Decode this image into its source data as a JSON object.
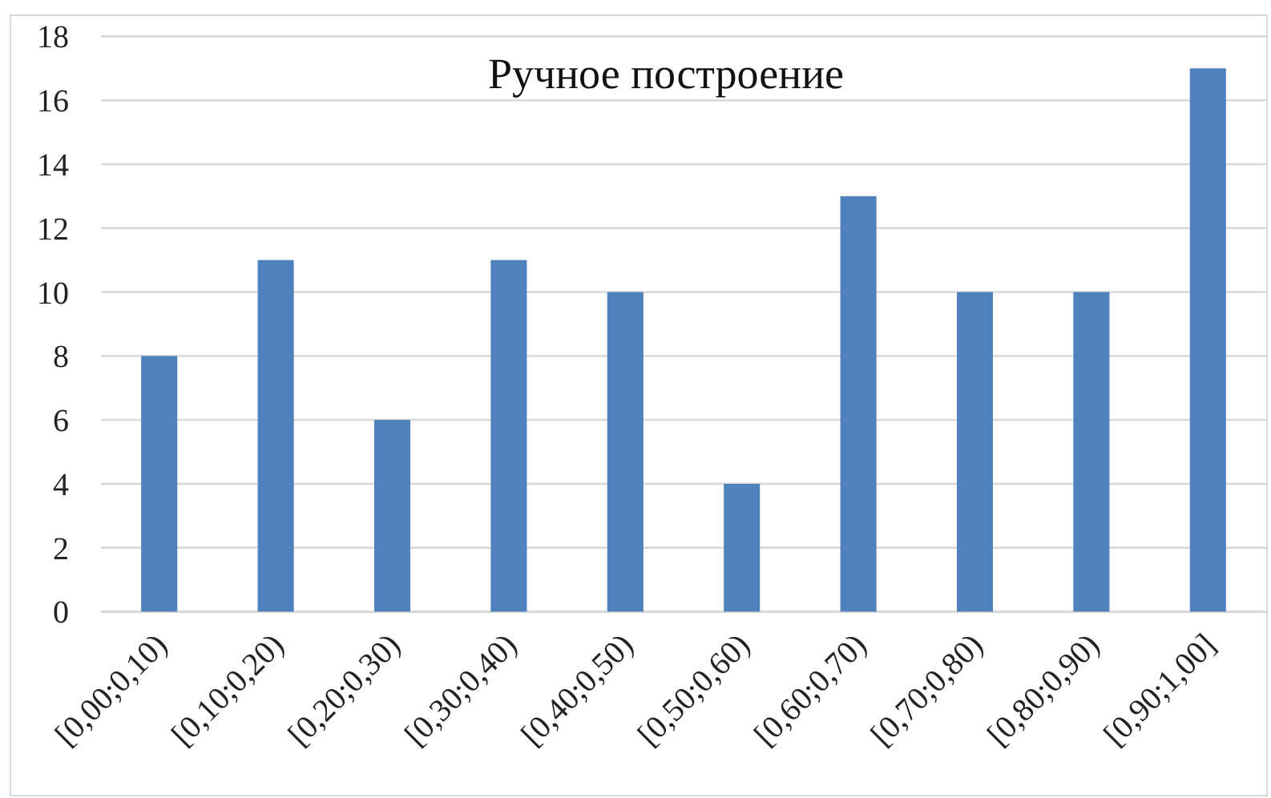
{
  "chart_data": {
    "type": "bar",
    "title": "Ручное построение",
    "categories": [
      "[0,00;0,10)",
      "[0,10;0,20)",
      "[0,20;0,30)",
      "[0,30;0,40)",
      "[0,40;0,50)",
      "[0,50;0,60)",
      "[0,60;0,70)",
      "[0,70;0,80)",
      "[0,80;0,90)",
      "[0,90;1,00]"
    ],
    "values": [
      8,
      11,
      6,
      11,
      10,
      4,
      13,
      10,
      10,
      17
    ],
    "color": "#4f81bd",
    "ylim": [
      0,
      18
    ],
    "yticks": [
      0,
      2,
      4,
      6,
      8,
      10,
      12,
      14,
      16,
      18
    ],
    "grid": "y"
  }
}
